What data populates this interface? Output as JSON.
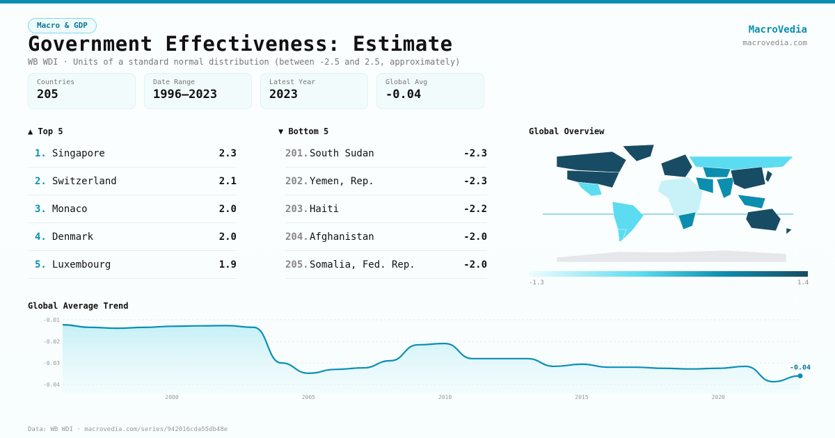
{
  "tag": "Macro & GDP",
  "title": "Government Effectiveness: Estimate",
  "subtitle": "WB WDI · Units of a standard normal distribution (between -2.5 and 2.5, approximately)",
  "brand": {
    "name": "MacroVedia",
    "url": "macrovedia.com"
  },
  "stats": [
    {
      "label": "Countries",
      "value": "205"
    },
    {
      "label": "Date Range",
      "value": "1996–2023"
    },
    {
      "label": "Latest Year",
      "value": "2023"
    },
    {
      "label": "Global Avg",
      "value": "-0.04"
    }
  ],
  "top": {
    "title": "▲ Top 5",
    "items": [
      {
        "rank": "1.",
        "name": "Singapore",
        "value": "2.3"
      },
      {
        "rank": "2.",
        "name": "Switzerland",
        "value": "2.1"
      },
      {
        "rank": "3.",
        "name": "Monaco",
        "value": "2.0"
      },
      {
        "rank": "4.",
        "name": "Denmark",
        "value": "2.0"
      },
      {
        "rank": "5.",
        "name": "Luxembourg",
        "value": "1.9"
      }
    ]
  },
  "bottom": {
    "title": "▼ Bottom 5",
    "items": [
      {
        "rank": "201.",
        "name": "South Sudan",
        "value": "-2.3"
      },
      {
        "rank": "202.",
        "name": "Yemen, Rep.",
        "value": "-2.3"
      },
      {
        "rank": "203.",
        "name": "Haiti",
        "value": "-2.2"
      },
      {
        "rank": "204.",
        "name": "Afghanistan",
        "value": "-2.0"
      },
      {
        "rank": "205.",
        "name": "Somalia, Fed. Rep.",
        "value": "-2.0"
      }
    ]
  },
  "map": {
    "title": "Global Overview",
    "legend_min": "-1.3",
    "legend_max": "1.4",
    "colors": {
      "high": "#184c64",
      "midhigh": "#0c8eae",
      "mid": "#5cdcf0",
      "low": "#c8f2f8",
      "none": "#e5e7ea"
    },
    "regions": [
      {
        "name": "Canada",
        "shade": "high"
      },
      {
        "name": "United States",
        "shade": "high"
      },
      {
        "name": "Greenland",
        "shade": "high"
      },
      {
        "name": "Mexico",
        "shade": "mid"
      },
      {
        "name": "South America",
        "shade": "mid"
      },
      {
        "name": "Southern Cone",
        "shade": "mid"
      },
      {
        "name": "Europe",
        "shade": "high"
      },
      {
        "name": "Russia",
        "shade": "mid"
      },
      {
        "name": "Africa",
        "shade": "low"
      },
      {
        "name": "Southern Africa",
        "shade": "midhigh"
      },
      {
        "name": "Middle East",
        "shade": "midhigh"
      },
      {
        "name": "Central Asia",
        "shade": "midhigh"
      },
      {
        "name": "India",
        "shade": "midhigh"
      },
      {
        "name": "China",
        "shade": "high"
      },
      {
        "name": "Japan",
        "shade": "high"
      },
      {
        "name": "Southeast Asia",
        "shade": "midhigh"
      },
      {
        "name": "Australia",
        "shade": "high"
      },
      {
        "name": "New Zealand",
        "shade": "high"
      },
      {
        "name": "Antarctica",
        "shade": "none"
      }
    ]
  },
  "trend": {
    "title": "Global Average Trend",
    "last_label": "-0.04"
  },
  "chart_data": {
    "type": "area",
    "title": "Global Average Trend",
    "xlabel": "",
    "ylabel": "",
    "xlim": [
      1996,
      2023
    ],
    "ylim": [
      -0.041,
      -0.0095
    ],
    "y_ticks": [
      {
        "v": -0.01,
        "label": "-0.01"
      },
      {
        "v": -0.02,
        "label": "-0.02"
      },
      {
        "v": -0.03,
        "label": "-0.03"
      },
      {
        "v": -0.04,
        "label": "-0.04"
      }
    ],
    "x_ticks": [
      {
        "v": 2000,
        "label": "2000"
      },
      {
        "v": 2005,
        "label": "2005"
      },
      {
        "v": 2010,
        "label": "2010"
      },
      {
        "v": 2015,
        "label": "2015"
      },
      {
        "v": 2020,
        "label": "2020"
      }
    ],
    "x": [
      1996,
      1997,
      1998,
      1999,
      2000,
      2001,
      2002,
      2003,
      2004,
      2005,
      2006,
      2007,
      2008,
      2009,
      2010,
      2011,
      2012,
      2013,
      2014,
      2015,
      2016,
      2017,
      2018,
      2019,
      2020,
      2021,
      2022,
      2023
    ],
    "y": [
      -0.0123,
      -0.0135,
      -0.0139,
      -0.0135,
      -0.013,
      -0.0128,
      -0.0127,
      -0.0135,
      -0.03,
      -0.0348,
      -0.033,
      -0.0323,
      -0.029,
      -0.0216,
      -0.021,
      -0.028,
      -0.028,
      -0.028,
      -0.0316,
      -0.0306,
      -0.032,
      -0.032,
      -0.0325,
      -0.0328,
      -0.0325,
      -0.0316,
      -0.0387,
      -0.036
    ],
    "color": "#0a8fb3"
  },
  "footer": "Data: WB WDI · macrovedia.com/series/942016cda55db48e"
}
